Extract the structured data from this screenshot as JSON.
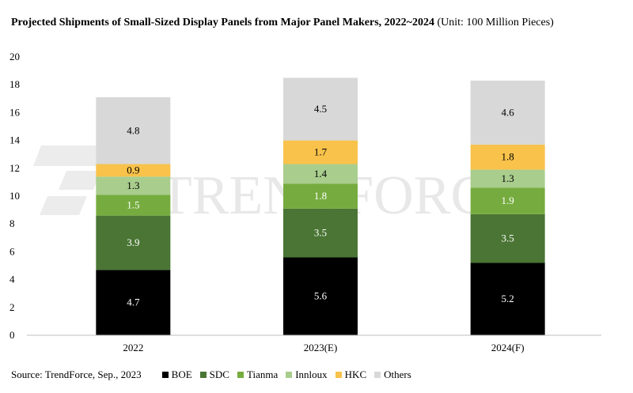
{
  "title": {
    "main": "Projected Shipments of Small-Sized Display Panels from Major Panel Makers, 2022~2024",
    "unit": "(Unit: 100 Million Pieces)"
  },
  "source": "Source: TrendForce, Sep., 2023",
  "watermark": "TRENDFORCE",
  "chart_data": {
    "type": "bar",
    "stacked": true,
    "categories": [
      "2022",
      "2023(E)",
      "2024(F)"
    ],
    "series": [
      {
        "name": "BOE",
        "color": "#000000",
        "label_color": "#ffffff",
        "values": [
          4.7,
          5.6,
          5.2
        ]
      },
      {
        "name": "SDC",
        "color": "#4a7534",
        "label_color": "#ffffff",
        "values": [
          3.9,
          3.5,
          3.5
        ]
      },
      {
        "name": "Tianma",
        "color": "#76ac3f",
        "label_color": "#ffffff",
        "values": [
          1.5,
          1.8,
          1.9
        ]
      },
      {
        "name": "Innloux",
        "color": "#a9cd8d",
        "label_color": "#000000",
        "values": [
          1.3,
          1.4,
          1.3
        ]
      },
      {
        "name": "HKC",
        "color": "#f8c24b",
        "label_color": "#000000",
        "values": [
          0.9,
          1.7,
          1.8
        ]
      },
      {
        "name": "Others",
        "color": "#d8d8d8",
        "label_color": "#000000",
        "values": [
          4.8,
          4.5,
          4.6
        ]
      }
    ],
    "ylim": [
      0,
      20
    ],
    "yticks": [
      "0",
      "2",
      "4",
      "6",
      "8",
      "10",
      "12",
      "14",
      "16",
      "18",
      "20"
    ],
    "grid": false,
    "legend_position": "bottom"
  }
}
